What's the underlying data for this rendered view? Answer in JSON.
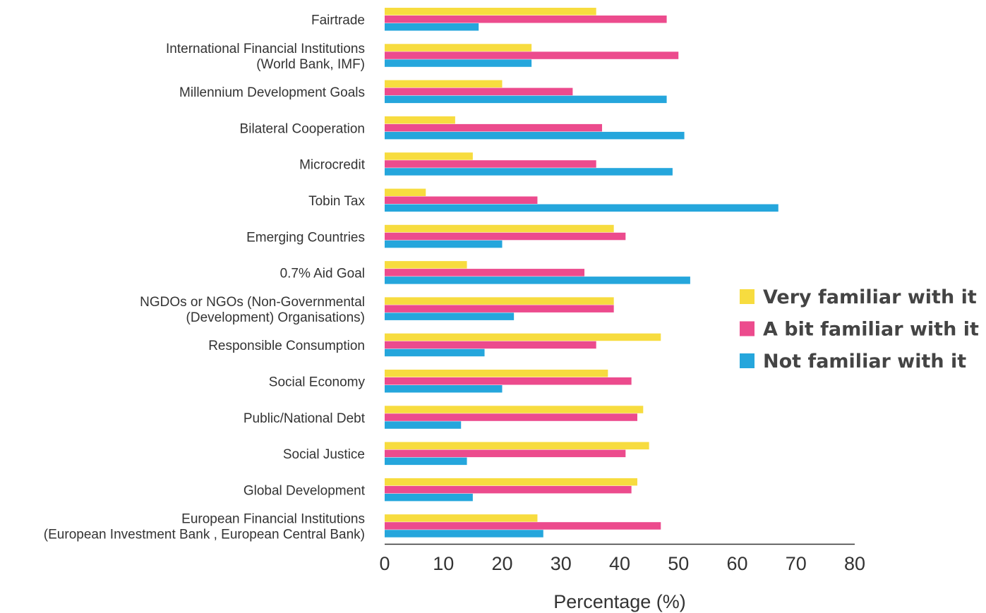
{
  "chart_data": {
    "type": "bar",
    "orientation": "horizontal",
    "categories": [
      [
        "Fairtrade"
      ],
      [
        "International Financial Institutions ",
        "(World Bank, IMF)"
      ],
      [
        "Millennium Development Goals"
      ],
      [
        "Bilateral Cooperation"
      ],
      [
        "Microcredit"
      ],
      [
        "Tobin Tax"
      ],
      [
        "Emerging Countries"
      ],
      [
        "0.7% Aid Goal"
      ],
      [
        "NGDOs or NGOs (Non-Governmental ",
        "(Development) Organisations)"
      ],
      [
        "Responsible Consumption"
      ],
      [
        "Social Economy"
      ],
      [
        "Public/National Debt"
      ],
      [
        "Social Justice"
      ],
      [
        "Global Development"
      ],
      [
        "European Financial Institutions ",
        "(European Investment Bank , European Central Bank)"
      ]
    ],
    "series": [
      {
        "name": "Very familiar with it",
        "color": "#f7dc3f",
        "values": [
          36,
          25,
          20,
          12,
          15,
          7,
          39,
          14,
          39,
          47,
          38,
          44,
          45,
          43,
          26
        ]
      },
      {
        "name": "A bit familiar with it",
        "color": "#ec4b8d",
        "values": [
          48,
          50,
          32,
          37,
          36,
          26,
          41,
          34,
          39,
          36,
          42,
          43,
          41,
          42,
          47
        ]
      },
      {
        "name": "Not familiar with it",
        "color": "#25a6dc",
        "values": [
          16,
          25,
          48,
          51,
          49,
          67,
          20,
          52,
          22,
          17,
          20,
          13,
          14,
          15,
          27
        ]
      }
    ],
    "xlabel": "Percentage (%)",
    "ylabel": "",
    "xlim": [
      0,
      80
    ],
    "xticks": [
      "0",
      "10",
      "20",
      "30",
      "40",
      "50",
      "60",
      "70",
      "80"
    ],
    "grid": false,
    "legend_position": "right"
  }
}
